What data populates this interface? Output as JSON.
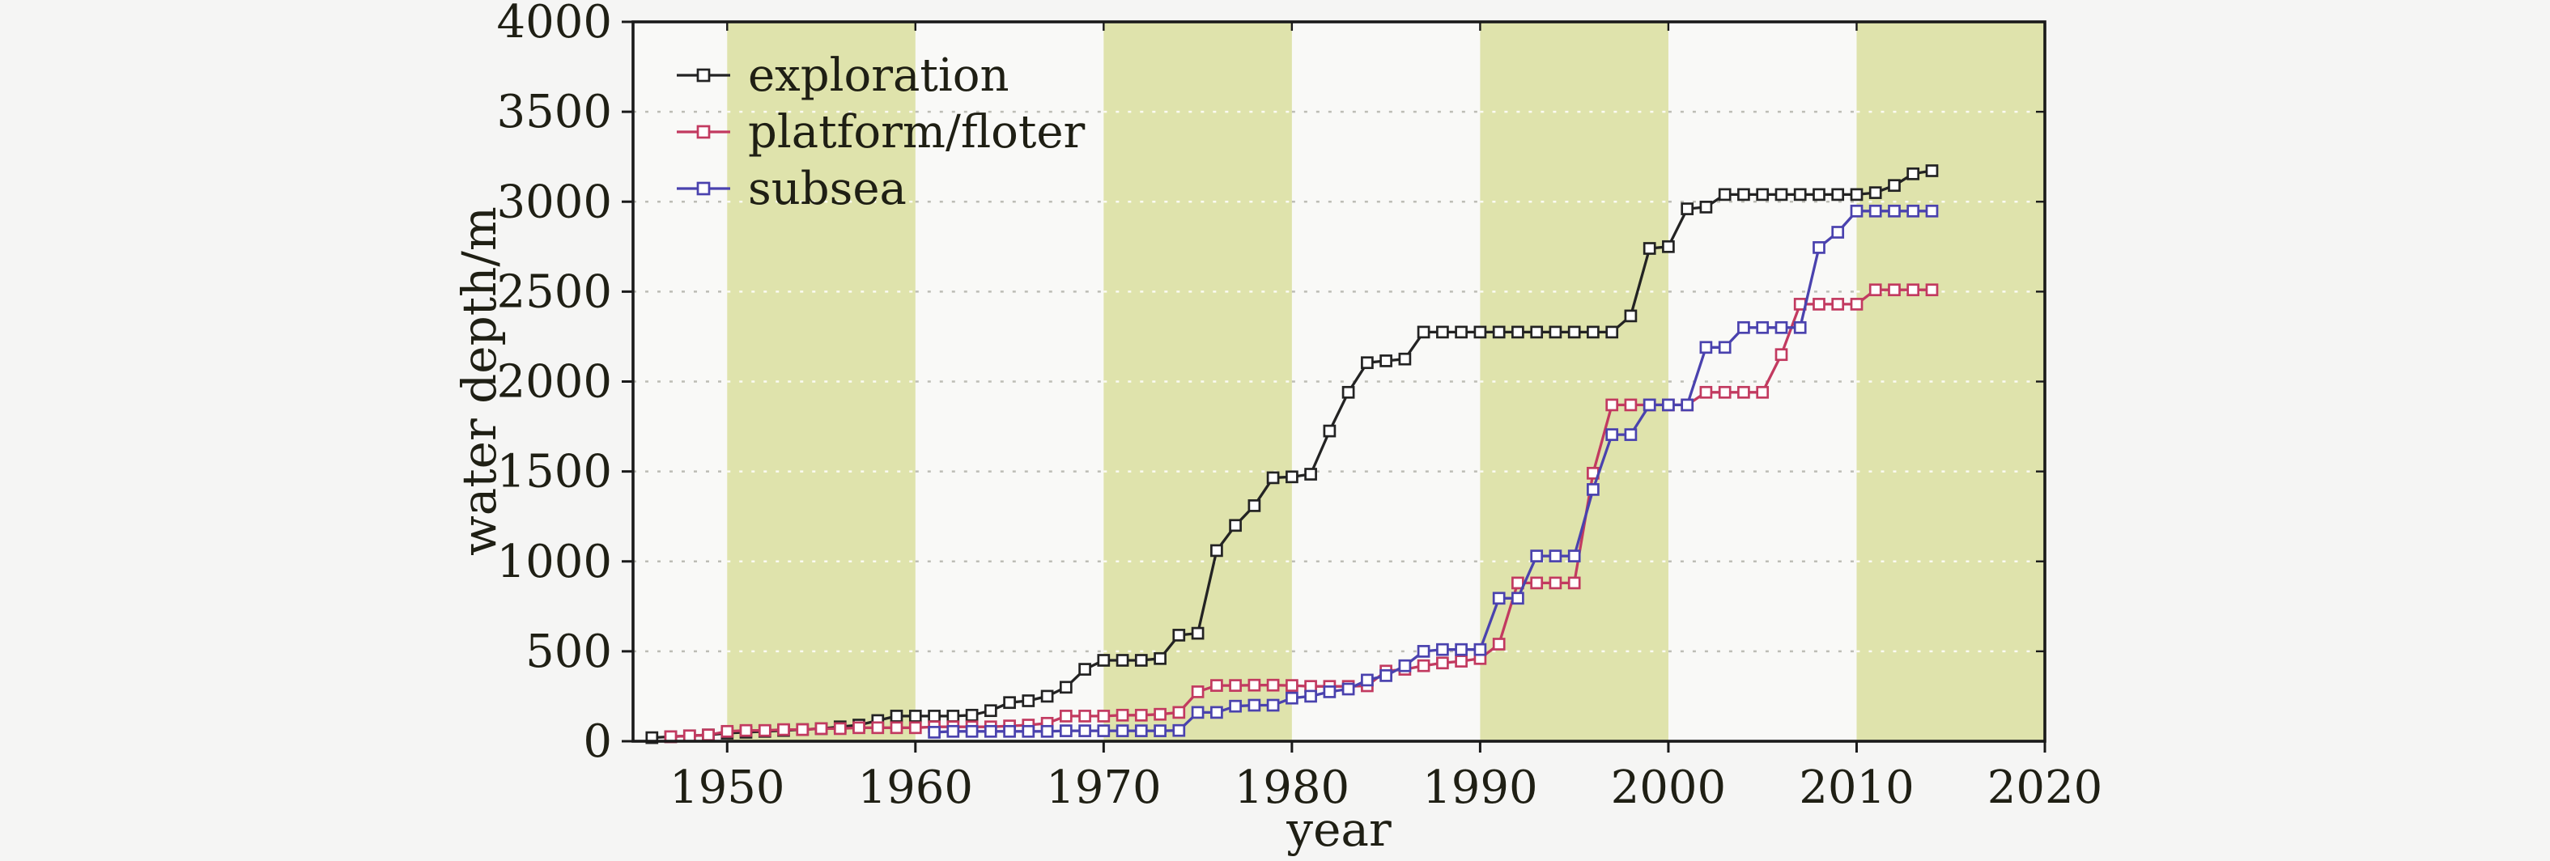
{
  "figure": {
    "background": "#f5f5f4",
    "plot_background": "#f9f9f7",
    "band_color": "#dfe3ac",
    "grid_color_on_white": "#bdbdb6",
    "grid_color_on_band": "#fbfbf3",
    "axis_color": "#1a1a1a",
    "text_color": "#1f1f14"
  },
  "chart_data": {
    "type": "line",
    "title": "",
    "xlabel": "year",
    "ylabel": "water depth/m",
    "xlim": [
      1945,
      2020
    ],
    "ylim": [
      0,
      4000
    ],
    "x_ticks": [
      1950,
      1960,
      1970,
      1980,
      1990,
      2000,
      2010,
      2020
    ],
    "y_ticks": [
      0,
      500,
      1000,
      1500,
      2000,
      2500,
      3000,
      3500,
      4000
    ],
    "grid": "horizontal dotted lines at every 500 m",
    "legend_position": "upper-left inside plot, no frame",
    "decade_bands": [
      [
        1950,
        1960
      ],
      [
        1970,
        1980
      ],
      [
        1990,
        2000
      ],
      [
        2010,
        2020
      ]
    ],
    "marker": "open square",
    "series": [
      {
        "name": "exploration",
        "color": "#232323",
        "points": [
          [
            1946,
            20
          ],
          [
            1947,
            25
          ],
          [
            1948,
            30
          ],
          [
            1949,
            35
          ],
          [
            1950,
            45
          ],
          [
            1951,
            50
          ],
          [
            1952,
            55
          ],
          [
            1953,
            60
          ],
          [
            1954,
            65
          ],
          [
            1955,
            70
          ],
          [
            1956,
            80
          ],
          [
            1957,
            90
          ],
          [
            1958,
            115
          ],
          [
            1959,
            140
          ],
          [
            1960,
            140
          ],
          [
            1961,
            140
          ],
          [
            1962,
            140
          ],
          [
            1963,
            145
          ],
          [
            1964,
            170
          ],
          [
            1965,
            215
          ],
          [
            1966,
            225
          ],
          [
            1967,
            250
          ],
          [
            1968,
            300
          ],
          [
            1969,
            400
          ],
          [
            1970,
            450
          ],
          [
            1971,
            450
          ],
          [
            1972,
            450
          ],
          [
            1973,
            460
          ],
          [
            1974,
            590
          ],
          [
            1975,
            600
          ],
          [
            1976,
            1060
          ],
          [
            1977,
            1200
          ],
          [
            1978,
            1310
          ],
          [
            1979,
            1465
          ],
          [
            1980,
            1470
          ],
          [
            1981,
            1485
          ],
          [
            1982,
            1725
          ],
          [
            1983,
            1940
          ],
          [
            1984,
            2105
          ],
          [
            1985,
            2115
          ],
          [
            1986,
            2125
          ],
          [
            1987,
            2275
          ],
          [
            1988,
            2275
          ],
          [
            1989,
            2275
          ],
          [
            1990,
            2275
          ],
          [
            1991,
            2275
          ],
          [
            1992,
            2275
          ],
          [
            1993,
            2275
          ],
          [
            1994,
            2275
          ],
          [
            1995,
            2275
          ],
          [
            1996,
            2275
          ],
          [
            1997,
            2275
          ],
          [
            1998,
            2365
          ],
          [
            1999,
            2740
          ],
          [
            2000,
            2750
          ],
          [
            2001,
            2960
          ],
          [
            2002,
            2970
          ],
          [
            2003,
            3040
          ],
          [
            2004,
            3040
          ],
          [
            2005,
            3040
          ],
          [
            2006,
            3040
          ],
          [
            2007,
            3040
          ],
          [
            2008,
            3040
          ],
          [
            2009,
            3040
          ],
          [
            2010,
            3040
          ],
          [
            2011,
            3050
          ],
          [
            2012,
            3090
          ],
          [
            2013,
            3155
          ],
          [
            2014,
            3172
          ]
        ]
      },
      {
        "name": "platform/floter",
        "color": "#c23a60",
        "points": [
          [
            1947,
            25
          ],
          [
            1948,
            30
          ],
          [
            1949,
            35
          ],
          [
            1950,
            55
          ],
          [
            1951,
            60
          ],
          [
            1952,
            60
          ],
          [
            1953,
            65
          ],
          [
            1954,
            65
          ],
          [
            1955,
            70
          ],
          [
            1956,
            70
          ],
          [
            1957,
            75
          ],
          [
            1958,
            75
          ],
          [
            1959,
            75
          ],
          [
            1960,
            75
          ],
          [
            1961,
            80
          ],
          [
            1962,
            80
          ],
          [
            1963,
            80
          ],
          [
            1964,
            80
          ],
          [
            1965,
            85
          ],
          [
            1966,
            90
          ],
          [
            1967,
            100
          ],
          [
            1968,
            140
          ],
          [
            1969,
            140
          ],
          [
            1970,
            140
          ],
          [
            1971,
            145
          ],
          [
            1972,
            145
          ],
          [
            1973,
            150
          ],
          [
            1974,
            160
          ],
          [
            1975,
            275
          ],
          [
            1976,
            310
          ],
          [
            1977,
            310
          ],
          [
            1978,
            312
          ],
          [
            1979,
            312
          ],
          [
            1980,
            310
          ],
          [
            1981,
            305
          ],
          [
            1982,
            305
          ],
          [
            1983,
            305
          ],
          [
            1984,
            308
          ],
          [
            1985,
            390
          ],
          [
            1986,
            400
          ],
          [
            1987,
            420
          ],
          [
            1988,
            435
          ],
          [
            1989,
            445
          ],
          [
            1990,
            460
          ],
          [
            1991,
            540
          ],
          [
            1992,
            880
          ],
          [
            1993,
            880
          ],
          [
            1994,
            880
          ],
          [
            1995,
            880
          ],
          [
            1996,
            1490
          ],
          [
            1997,
            1870
          ],
          [
            1998,
            1870
          ],
          [
            1999,
            1870
          ],
          [
            2000,
            1870
          ],
          [
            2001,
            1870
          ],
          [
            2002,
            1940
          ],
          [
            2003,
            1940
          ],
          [
            2004,
            1940
          ],
          [
            2005,
            1940
          ],
          [
            2006,
            2150
          ],
          [
            2007,
            2430
          ],
          [
            2008,
            2430
          ],
          [
            2009,
            2430
          ],
          [
            2010,
            2430
          ],
          [
            2011,
            2510
          ],
          [
            2012,
            2510
          ],
          [
            2013,
            2510
          ],
          [
            2014,
            2510
          ]
        ]
      },
      {
        "name": "subsea",
        "color": "#4a42ae",
        "points": [
          [
            1961,
            50
          ],
          [
            1962,
            55
          ],
          [
            1963,
            55
          ],
          [
            1964,
            55
          ],
          [
            1965,
            55
          ],
          [
            1966,
            55
          ],
          [
            1967,
            55
          ],
          [
            1968,
            58
          ],
          [
            1969,
            58
          ],
          [
            1970,
            58
          ],
          [
            1971,
            58
          ],
          [
            1972,
            58
          ],
          [
            1973,
            58
          ],
          [
            1974,
            60
          ],
          [
            1975,
            160
          ],
          [
            1976,
            160
          ],
          [
            1977,
            195
          ],
          [
            1978,
            200
          ],
          [
            1979,
            200
          ],
          [
            1980,
            240
          ],
          [
            1981,
            250
          ],
          [
            1982,
            275
          ],
          [
            1983,
            290
          ],
          [
            1984,
            340
          ],
          [
            1985,
            365
          ],
          [
            1986,
            420
          ],
          [
            1987,
            500
          ],
          [
            1988,
            510
          ],
          [
            1989,
            510
          ],
          [
            1990,
            510
          ],
          [
            1991,
            795
          ],
          [
            1992,
            795
          ],
          [
            1993,
            1030
          ],
          [
            1994,
            1030
          ],
          [
            1995,
            1030
          ],
          [
            1996,
            1400
          ],
          [
            1997,
            1705
          ],
          [
            1998,
            1705
          ],
          [
            1999,
            1870
          ],
          [
            2000,
            1870
          ],
          [
            2001,
            1870
          ],
          [
            2002,
            2190
          ],
          [
            2003,
            2190
          ],
          [
            2004,
            2300
          ],
          [
            2005,
            2300
          ],
          [
            2006,
            2300
          ],
          [
            2007,
            2300
          ],
          [
            2008,
            2745
          ],
          [
            2009,
            2830
          ],
          [
            2010,
            2948
          ],
          [
            2011,
            2948
          ],
          [
            2012,
            2948
          ],
          [
            2013,
            2948
          ],
          [
            2014,
            2948
          ]
        ]
      }
    ]
  }
}
